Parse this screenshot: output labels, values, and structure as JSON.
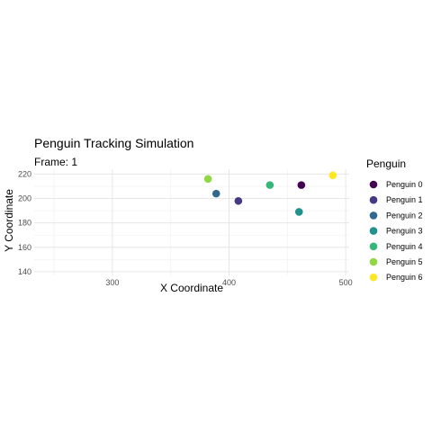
{
  "chart_data": {
    "type": "scatter",
    "title": "Penguin Tracking Simulation",
    "subtitle": "Frame: 1",
    "xlabel": "X Coordinate",
    "ylabel": "Y Coordinate",
    "xlim": [
      233,
      503
    ],
    "ylim": [
      137,
      224
    ],
    "x_ticks": [
      300,
      400,
      500
    ],
    "y_ticks": [
      140,
      160,
      180,
      200,
      220
    ],
    "grid": true,
    "legend": {
      "title": "Penguin",
      "position": "right"
    },
    "series": [
      {
        "name": "Penguin 0",
        "color": "#440154",
        "x": 462,
        "y": 211
      },
      {
        "name": "Penguin 1",
        "color": "#443983",
        "x": 408,
        "y": 198
      },
      {
        "name": "Penguin 2",
        "color": "#31688e",
        "x": 389,
        "y": 204
      },
      {
        "name": "Penguin 3",
        "color": "#21918c",
        "x": 460,
        "y": 189
      },
      {
        "name": "Penguin 4",
        "color": "#35b779",
        "x": 435,
        "y": 211
      },
      {
        "name": "Penguin 5",
        "color": "#90d743",
        "x": 382,
        "y": 216
      },
      {
        "name": "Penguin 6",
        "color": "#fde725",
        "x": 489,
        "y": 219
      }
    ]
  }
}
